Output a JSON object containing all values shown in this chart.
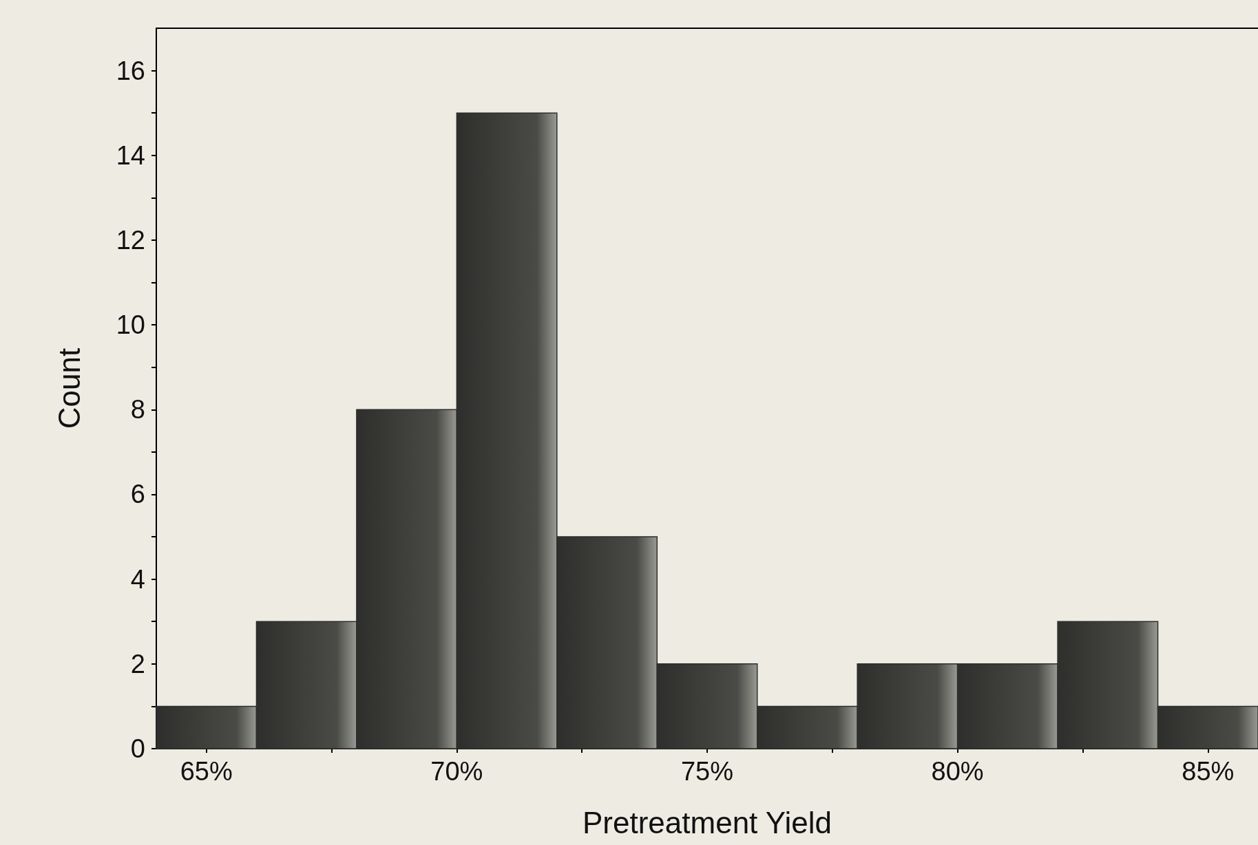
{
  "chart_data": {
    "type": "histogram",
    "xlabel": "Pretreatment Yield",
    "ylabel": "Count",
    "bins": [
      64,
      66,
      68,
      70,
      72,
      74,
      76,
      78,
      80,
      82,
      84,
      86
    ],
    "values": [
      1,
      3,
      8,
      15,
      5,
      2,
      1,
      2,
      2,
      3,
      1
    ],
    "color": "#2e2e2c",
    "xlim": [
      64,
      86
    ],
    "xticks": [
      {
        "value": 65,
        "label": "65%"
      },
      {
        "value": 67.5,
        "label": null
      },
      {
        "value": 70,
        "label": "70%"
      },
      {
        "value": 72.5,
        "label": null
      },
      {
        "value": 75,
        "label": "75%"
      },
      {
        "value": 77.5,
        "label": null
      },
      {
        "value": 80,
        "label": "80%"
      },
      {
        "value": 82.5,
        "label": null
      },
      {
        "value": 85,
        "label": "85%"
      }
    ],
    "ylim": [
      0,
      17
    ],
    "yticks": [
      0,
      {
        "value": 1,
        "label": null
      },
      2,
      {
        "value": 3,
        "label": null
      },
      4,
      {
        "value": 5,
        "label": null
      },
      6,
      {
        "value": 7,
        "label": null
      },
      8,
      {
        "value": 9,
        "label": null
      },
      10,
      {
        "value": 11,
        "label": null
      },
      12,
      {
        "value": 13,
        "label": null
      },
      14,
      {
        "value": 15,
        "label": null
      },
      16
    ],
    "grid": false
  }
}
